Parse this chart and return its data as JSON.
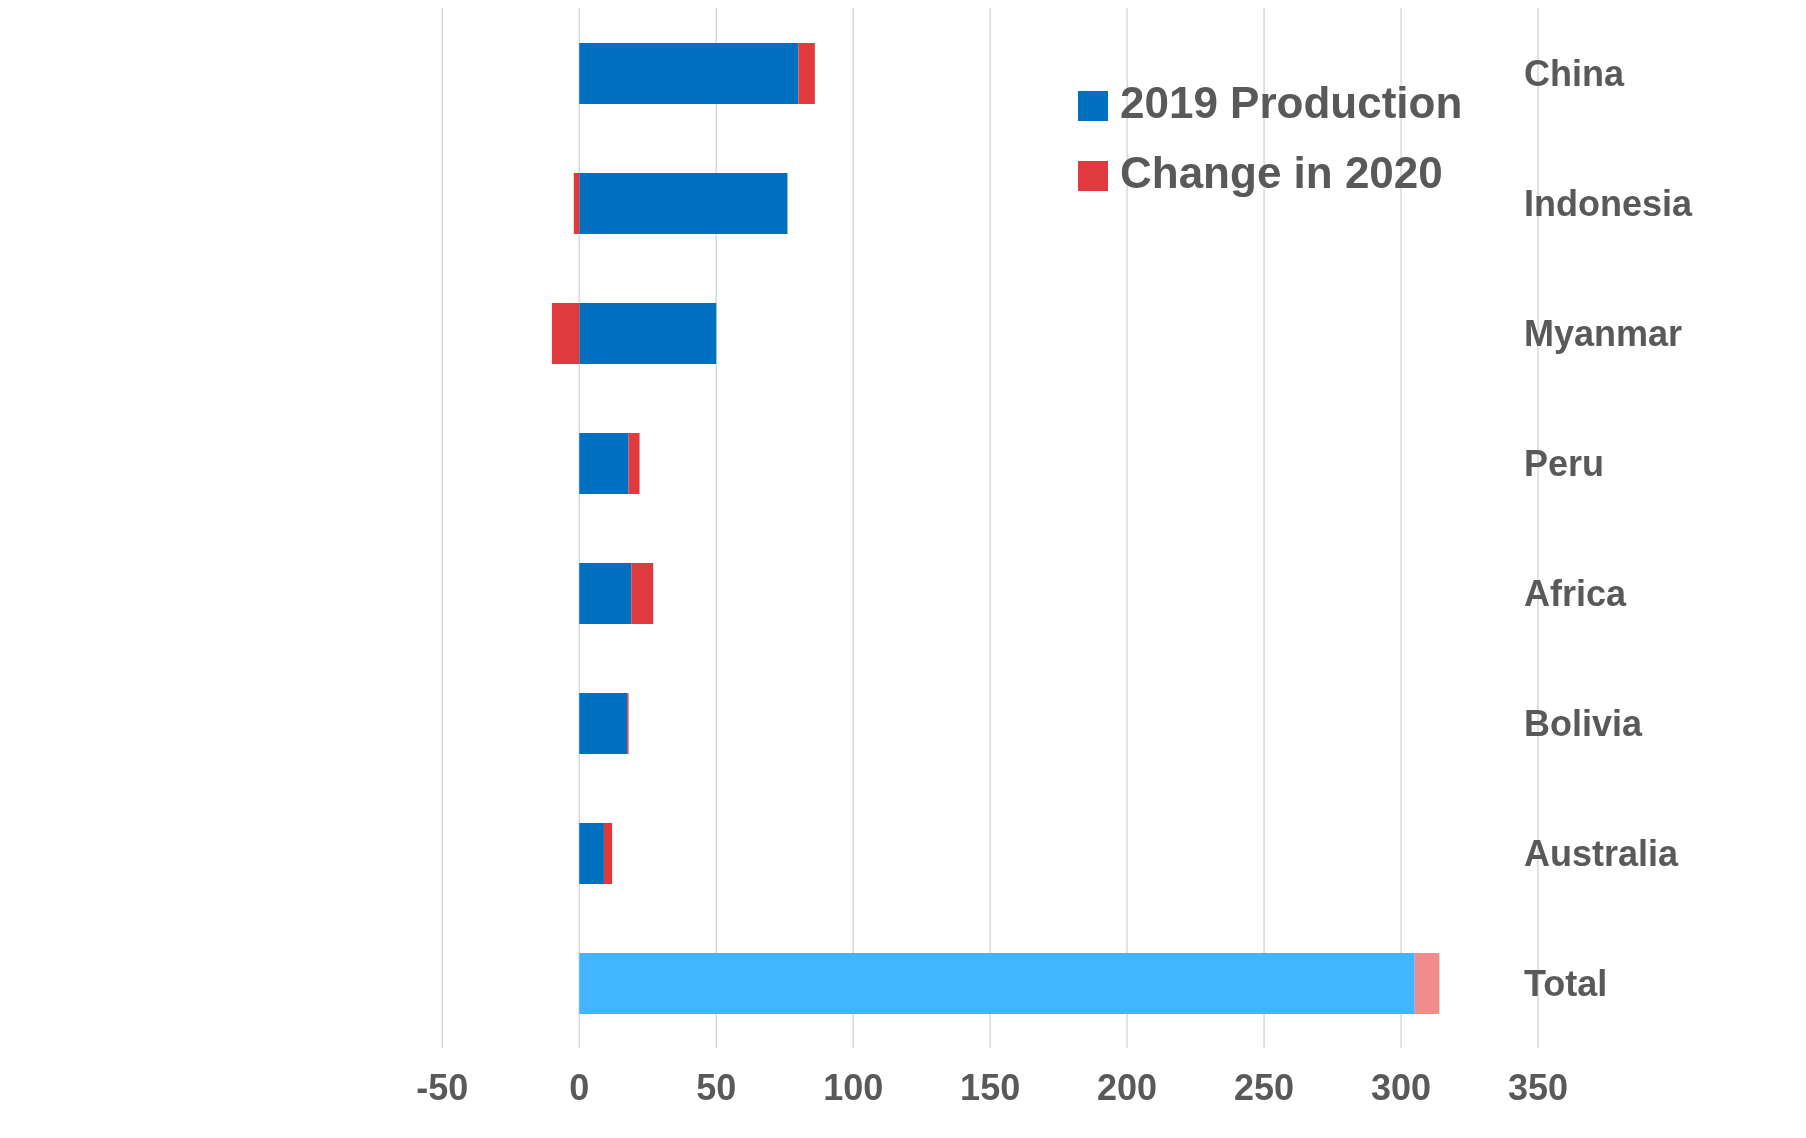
{
  "chart_data": {
    "type": "bar",
    "orientation": "horizontal",
    "stacked": true,
    "categories": [
      "China",
      "Indonesia",
      "Myanmar",
      "Peru",
      "Africa",
      "Bolivia",
      "Australia",
      "Total"
    ],
    "series": [
      {
        "name": "2019 Production",
        "color": "#0070c0",
        "colors": [
          "#0070c0",
          "#0070c0",
          "#0070c0",
          "#0070c0",
          "#0070c0",
          "#0070c0",
          "#0070c0",
          "#41b6ff"
        ],
        "values": [
          80,
          76,
          50,
          18,
          19,
          17.5,
          9,
          305
        ]
      },
      {
        "name": "Change in 2020",
        "color": "#e0393e",
        "colors": [
          "#e0393e",
          "#e0393e",
          "#e0393e",
          "#e0393e",
          "#e0393e",
          "#e0393e",
          "#e0393e",
          "#f08c8c"
        ],
        "values": [
          6,
          -2,
          -10,
          4,
          8,
          0.5,
          3,
          9
        ]
      }
    ],
    "xlim": [
      -50,
      350
    ],
    "xticks": [
      -50,
      0,
      50,
      100,
      150,
      200,
      250,
      300,
      350
    ],
    "grid": "x",
    "legend": "top right"
  }
}
